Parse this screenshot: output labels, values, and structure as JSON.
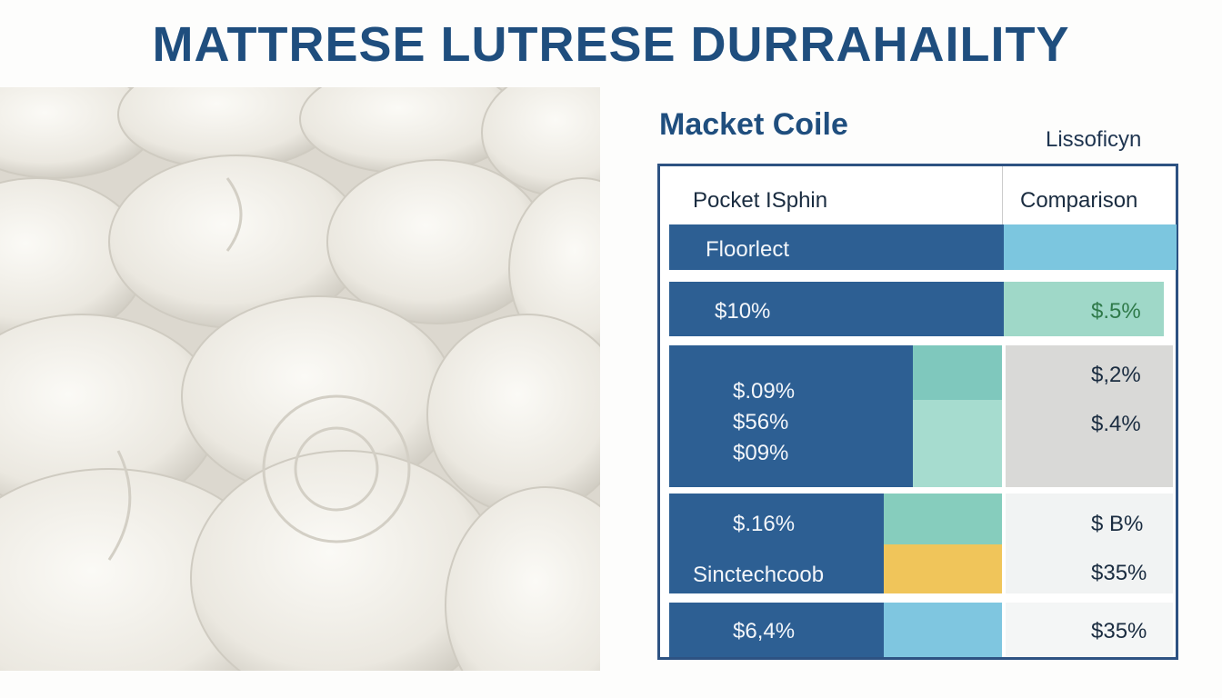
{
  "header": {
    "title": "MATTRESE LUTRESE DURRAHAILITY"
  },
  "panel": {
    "title": "Macket Coile",
    "subtitle": "Lissoficyn"
  },
  "table": {
    "headers": [
      "Pocket ISphin",
      "Comparison"
    ],
    "rows": [
      {
        "left": [
          "Floorlect"
        ],
        "right": []
      },
      {
        "left": [
          "$10%"
        ],
        "right": [
          "$.5%"
        ]
      },
      {
        "left": [
          "$.09%",
          "$56%",
          "$09%"
        ],
        "right": [
          "$,2%",
          "$.4%"
        ]
      },
      {
        "left": [
          "$.16%",
          "Sinctechcoob"
        ],
        "right": [
          "$ B%",
          "$35%"
        ]
      },
      {
        "left": [
          "$6,4%"
        ],
        "right": [
          "$35%"
        ]
      }
    ]
  }
}
